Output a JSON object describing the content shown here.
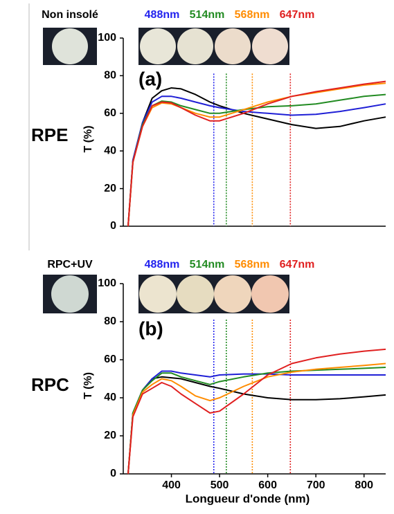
{
  "chart_data": [
    {
      "type": "line",
      "row_label": "RPE",
      "sample_label": "Non insolé",
      "panel_label": "(a)",
      "ylabel": "T (%)",
      "x": [
        310,
        320,
        340,
        360,
        380,
        400,
        420,
        450,
        480,
        500,
        550,
        600,
        650,
        700,
        750,
        800,
        845
      ],
      "xlim": [
        300,
        845
      ],
      "ylim": [
        0,
        100
      ],
      "yticks": [
        0,
        20,
        40,
        60,
        80,
        100
      ],
      "series": [
        {
          "color": "#000000",
          "values": [
            0,
            35,
            55,
            68,
            72,
            73.5,
            73,
            70,
            66,
            64,
            60,
            57,
            54,
            52,
            53,
            56,
            58
          ]
        },
        {
          "color": "#1f1fd6",
          "values": [
            0,
            35,
            55,
            66,
            69,
            69,
            68,
            66,
            64,
            63,
            61,
            60,
            59,
            59.5,
            61,
            63,
            65
          ]
        },
        {
          "color": "#228b22",
          "values": [
            0,
            34,
            54,
            64,
            66.5,
            66,
            64,
            62,
            60,
            60,
            62,
            63.5,
            64,
            65,
            67,
            69,
            70
          ]
        },
        {
          "color": "#ff8c00",
          "values": [
            0,
            34,
            53,
            63,
            65.5,
            65,
            63,
            60,
            58,
            58,
            62,
            66,
            69,
            71,
            73,
            75,
            76
          ]
        },
        {
          "color": "#e02020",
          "values": [
            0,
            34,
            53,
            64,
            66,
            65.5,
            63,
            59,
            56,
            56,
            60,
            65,
            69,
            71.5,
            73.5,
            75.5,
            77
          ]
        }
      ],
      "markers": [
        {
          "label": "488nm",
          "value": 488,
          "color": "#2222ee"
        },
        {
          "label": "514nm",
          "value": 514,
          "color": "#228b22"
        },
        {
          "label": "568nm",
          "value": 568,
          "color": "#ff8c00"
        },
        {
          "label": "647nm",
          "value": 647,
          "color": "#e02020"
        }
      ]
    },
    {
      "type": "line",
      "row_label": "RPC",
      "sample_label": "RPC+UV",
      "panel_label": "(b)",
      "ylabel": "T (%)",
      "xlabel": "Longueur d'onde (nm)",
      "x": [
        310,
        320,
        340,
        360,
        380,
        400,
        420,
        450,
        480,
        500,
        550,
        600,
        650,
        700,
        750,
        800,
        845
      ],
      "xlim": [
        300,
        845
      ],
      "xticks": [
        400,
        500,
        600,
        700,
        800
      ],
      "ylim": [
        0,
        100
      ],
      "yticks": [
        0,
        20,
        40,
        60,
        80,
        100
      ],
      "series": [
        {
          "color": "#000000",
          "values": [
            0,
            32,
            44,
            50,
            51,
            50.5,
            50,
            48,
            46,
            45,
            42,
            40,
            39,
            39,
            39.5,
            40.5,
            41.5
          ]
        },
        {
          "color": "#1f1fd6",
          "values": [
            0,
            32,
            44,
            50,
            54,
            54,
            53,
            52,
            51,
            52,
            52.5,
            52.5,
            52,
            52,
            52,
            52,
            52
          ]
        },
        {
          "color": "#228b22",
          "values": [
            0,
            32,
            44,
            49,
            53,
            53,
            51,
            49,
            47,
            48.5,
            51,
            53,
            54,
            54.5,
            55,
            55.5,
            56
          ]
        },
        {
          "color": "#ff8c00",
          "values": [
            0,
            31,
            43,
            47,
            50,
            49,
            46,
            41,
            38.5,
            40,
            46,
            51,
            53.5,
            55,
            56,
            57,
            58
          ]
        },
        {
          "color": "#e02020",
          "values": [
            0,
            30,
            42,
            45,
            48,
            46,
            42,
            37,
            32,
            33,
            42,
            52,
            58,
            61,
            63,
            64.5,
            65.5
          ]
        }
      ],
      "markers": [
        {
          "label": "488nm",
          "value": 488,
          "color": "#2222ee"
        },
        {
          "label": "514nm",
          "value": 514,
          "color": "#228b22"
        },
        {
          "label": "568nm",
          "value": 568,
          "color": "#ff8c00"
        },
        {
          "label": "647nm",
          "value": 647,
          "color": "#e02020"
        }
      ]
    }
  ]
}
